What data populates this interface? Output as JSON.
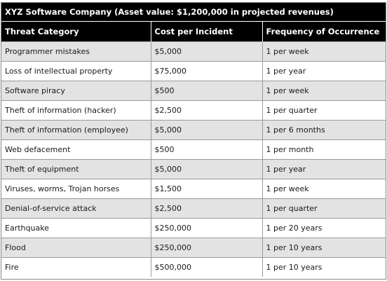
{
  "table": {
    "title": "XYZ Software Company (Asset value: $1,200,000 in projected revenues)",
    "headers": [
      "Threat Category",
      "Cost per Incident",
      "Frequency of Occurrence"
    ],
    "rows": [
      [
        "Programmer mistakes",
        "$5,000",
        "1 per week"
      ],
      [
        "Loss of intellectual property",
        "$75,000",
        "1 per year"
      ],
      [
        "Software piracy",
        "$500",
        "1 per week"
      ],
      [
        "Theft of information (hacker)",
        "$2,500",
        "1 per quarter"
      ],
      [
        "Theft of information (employee)",
        "$5,000",
        "1 per 6 months"
      ],
      [
        "Web defacement",
        "$500",
        "1 per month"
      ],
      [
        "Theft of equipment",
        "$5,000",
        "1 per year"
      ],
      [
        "Viruses, worms, Trojan horses",
        "$1,500",
        "1 per week"
      ],
      [
        "Denial-of-service attack",
        "$2,500",
        "1 per quarter"
      ],
      [
        "Earthquake",
        "$250,000",
        "1 per 20 years"
      ],
      [
        "Flood",
        "$250,000",
        "1 per 10 years"
      ],
      [
        "Fire",
        "$500,000",
        "1 per 10 years"
      ]
    ]
  },
  "colors": {
    "header_bg": "#000000",
    "header_text": "#ffffff",
    "row_shade": "#e3e3e3",
    "row_plain": "#ffffff",
    "grid_line": "#9a9a9a"
  }
}
